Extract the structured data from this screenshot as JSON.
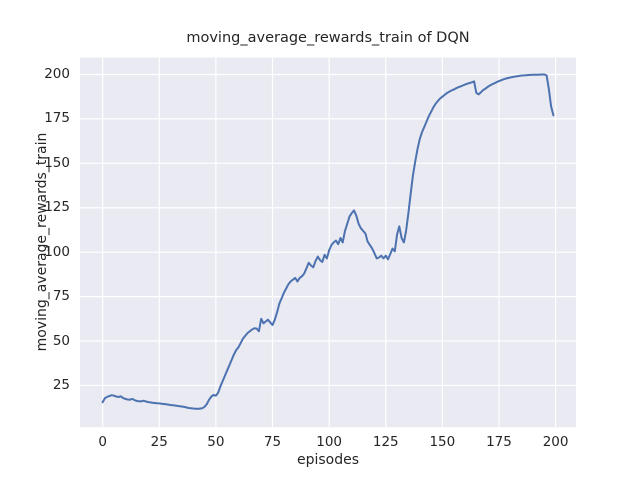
{
  "chart_data": {
    "type": "line",
    "title": "moving_average_rewards_train of DQN",
    "xlabel": "episodes",
    "ylabel": "moving_average_rewards_train",
    "x_ticks": [
      0,
      25,
      50,
      75,
      100,
      125,
      150,
      175,
      200
    ],
    "y_ticks": [
      25,
      50,
      75,
      100,
      125,
      150,
      175,
      200
    ],
    "xlim": [
      -10,
      209
    ],
    "ylim": [
      1.5,
      209.5
    ],
    "grid": true,
    "legend": "none",
    "plot_bg_color": "#EAEAF2",
    "grid_color": "#FFFFFF",
    "text_color": "#262626",
    "series": [
      {
        "name": "moving_average_rewards_train",
        "color": "#4C72B0",
        "points": [
          [
            0,
            15.5
          ],
          [
            1,
            17.8
          ],
          [
            2,
            18.6
          ],
          [
            3,
            19.0
          ],
          [
            4,
            19.5
          ],
          [
            5,
            19.2
          ],
          [
            6,
            18.8
          ],
          [
            7,
            18.5
          ],
          [
            8,
            18.9
          ],
          [
            9,
            18.0
          ],
          [
            10,
            17.4
          ],
          [
            11,
            17.1
          ],
          [
            12,
            17.0
          ],
          [
            13,
            17.4
          ],
          [
            14,
            16.8
          ],
          [
            15,
            16.3
          ],
          [
            16,
            16.1
          ],
          [
            17,
            16.0
          ],
          [
            18,
            16.4
          ],
          [
            19,
            16.0
          ],
          [
            20,
            15.7
          ],
          [
            22,
            15.3
          ],
          [
            24,
            15.0
          ],
          [
            25,
            14.9
          ],
          [
            26,
            14.7
          ],
          [
            28,
            14.4
          ],
          [
            30,
            14.0
          ],
          [
            32,
            13.7
          ],
          [
            34,
            13.3
          ],
          [
            36,
            12.9
          ],
          [
            38,
            12.3
          ],
          [
            40,
            12.0
          ],
          [
            42,
            11.8
          ],
          [
            44,
            12.2
          ],
          [
            45,
            13.0
          ],
          [
            46,
            14.5
          ],
          [
            47,
            17.0
          ],
          [
            48,
            18.8
          ],
          [
            49,
            19.6
          ],
          [
            50,
            19.2
          ],
          [
            51,
            21.0
          ],
          [
            52,
            24.5
          ],
          [
            53,
            27.5
          ],
          [
            54,
            30.5
          ],
          [
            55,
            33.5
          ],
          [
            56,
            36.5
          ],
          [
            57,
            39.5
          ],
          [
            58,
            42.5
          ],
          [
            59,
            45.0
          ],
          [
            60,
            46.5
          ],
          [
            61,
            49.0
          ],
          [
            62,
            51.5
          ],
          [
            63,
            53.0
          ],
          [
            64,
            54.5
          ],
          [
            65,
            55.5
          ],
          [
            66,
            56.5
          ],
          [
            67,
            57.2
          ],
          [
            68,
            57.0
          ],
          [
            69,
            55.5
          ],
          [
            70,
            62.5
          ],
          [
            71,
            60.0
          ],
          [
            72,
            61.0
          ],
          [
            73,
            62.0
          ],
          [
            74,
            60.5
          ],
          [
            75,
            59.0
          ],
          [
            76,
            62.0
          ],
          [
            77,
            66.0
          ],
          [
            78,
            71.0
          ],
          [
            79,
            74.0
          ],
          [
            80,
            77.0
          ],
          [
            81,
            79.5
          ],
          [
            82,
            82.0
          ],
          [
            83,
            83.5
          ],
          [
            84,
            84.5
          ],
          [
            85,
            85.5
          ],
          [
            86,
            83.5
          ],
          [
            87,
            85.5
          ],
          [
            88,
            86.5
          ],
          [
            89,
            88.0
          ],
          [
            90,
            91.0
          ],
          [
            91,
            94.0
          ],
          [
            92,
            92.5
          ],
          [
            93,
            91.5
          ],
          [
            94,
            95.0
          ],
          [
            95,
            97.5
          ],
          [
            96,
            95.5
          ],
          [
            97,
            94.5
          ],
          [
            98,
            98.5
          ],
          [
            99,
            96.5
          ],
          [
            100,
            101.0
          ],
          [
            101,
            104.0
          ],
          [
            102,
            105.5
          ],
          [
            103,
            106.5
          ],
          [
            104,
            104.5
          ],
          [
            105,
            108.0
          ],
          [
            106,
            105.5
          ],
          [
            107,
            112.0
          ],
          [
            108,
            116.0
          ],
          [
            109,
            120.0
          ],
          [
            110,
            122.0
          ],
          [
            111,
            123.5
          ],
          [
            112,
            120.5
          ],
          [
            113,
            116.0
          ],
          [
            114,
            113.5
          ],
          [
            115,
            112.0
          ],
          [
            116,
            110.5
          ],
          [
            117,
            106.0
          ],
          [
            118,
            104.0
          ],
          [
            119,
            102.0
          ],
          [
            120,
            99.5
          ],
          [
            121,
            96.5
          ],
          [
            122,
            97.0
          ],
          [
            123,
            98.0
          ],
          [
            124,
            96.5
          ],
          [
            125,
            98.0
          ],
          [
            126,
            96.0
          ],
          [
            127,
            99.0
          ],
          [
            128,
            102.0
          ],
          [
            129,
            100.5
          ],
          [
            130,
            110.0
          ],
          [
            131,
            114.5
          ],
          [
            132,
            108.0
          ],
          [
            133,
            105.5
          ],
          [
            134,
            112.0
          ],
          [
            135,
            122.0
          ],
          [
            136,
            133.0
          ],
          [
            137,
            143.0
          ],
          [
            138,
            151.0
          ],
          [
            139,
            158.0
          ],
          [
            140,
            163.5
          ],
          [
            141,
            167.5
          ],
          [
            142,
            170.5
          ],
          [
            143,
            173.5
          ],
          [
            144,
            176.5
          ],
          [
            145,
            179.0
          ],
          [
            146,
            181.5
          ],
          [
            147,
            183.5
          ],
          [
            148,
            185.0
          ],
          [
            149,
            186.5
          ],
          [
            150,
            187.5
          ],
          [
            151,
            188.5
          ],
          [
            152,
            189.5
          ],
          [
            153,
            190.3
          ],
          [
            154,
            191.0
          ],
          [
            155,
            191.5
          ],
          [
            156,
            192.2
          ],
          [
            157,
            192.8
          ],
          [
            158,
            193.3
          ],
          [
            159,
            193.8
          ],
          [
            160,
            194.3
          ],
          [
            161,
            194.8
          ],
          [
            162,
            195.2
          ],
          [
            163,
            195.6
          ],
          [
            164,
            196.1
          ],
          [
            165,
            189.7
          ],
          [
            166,
            188.8
          ],
          [
            167,
            190.0
          ],
          [
            168,
            191.2
          ],
          [
            169,
            192.0
          ],
          [
            170,
            193.0
          ],
          [
            171,
            193.8
          ],
          [
            172,
            194.5
          ],
          [
            173,
            195.1
          ],
          [
            174,
            195.7
          ],
          [
            175,
            196.3
          ],
          [
            176,
            196.8
          ],
          [
            177,
            197.3
          ],
          [
            178,
            197.7
          ],
          [
            179,
            198.0
          ],
          [
            180,
            198.3
          ],
          [
            181,
            198.6
          ],
          [
            182,
            198.8
          ],
          [
            183,
            199.0
          ],
          [
            184,
            199.2
          ],
          [
            185,
            199.4
          ],
          [
            186,
            199.5
          ],
          [
            187,
            199.6
          ],
          [
            188,
            199.7
          ],
          [
            190,
            199.8
          ],
          [
            192,
            199.9
          ],
          [
            194,
            200.0
          ],
          [
            195,
            200.0
          ],
          [
            196,
            199.5
          ],
          [
            197,
            192.0
          ],
          [
            198,
            182.0
          ],
          [
            199,
            177.0
          ]
        ]
      }
    ]
  }
}
